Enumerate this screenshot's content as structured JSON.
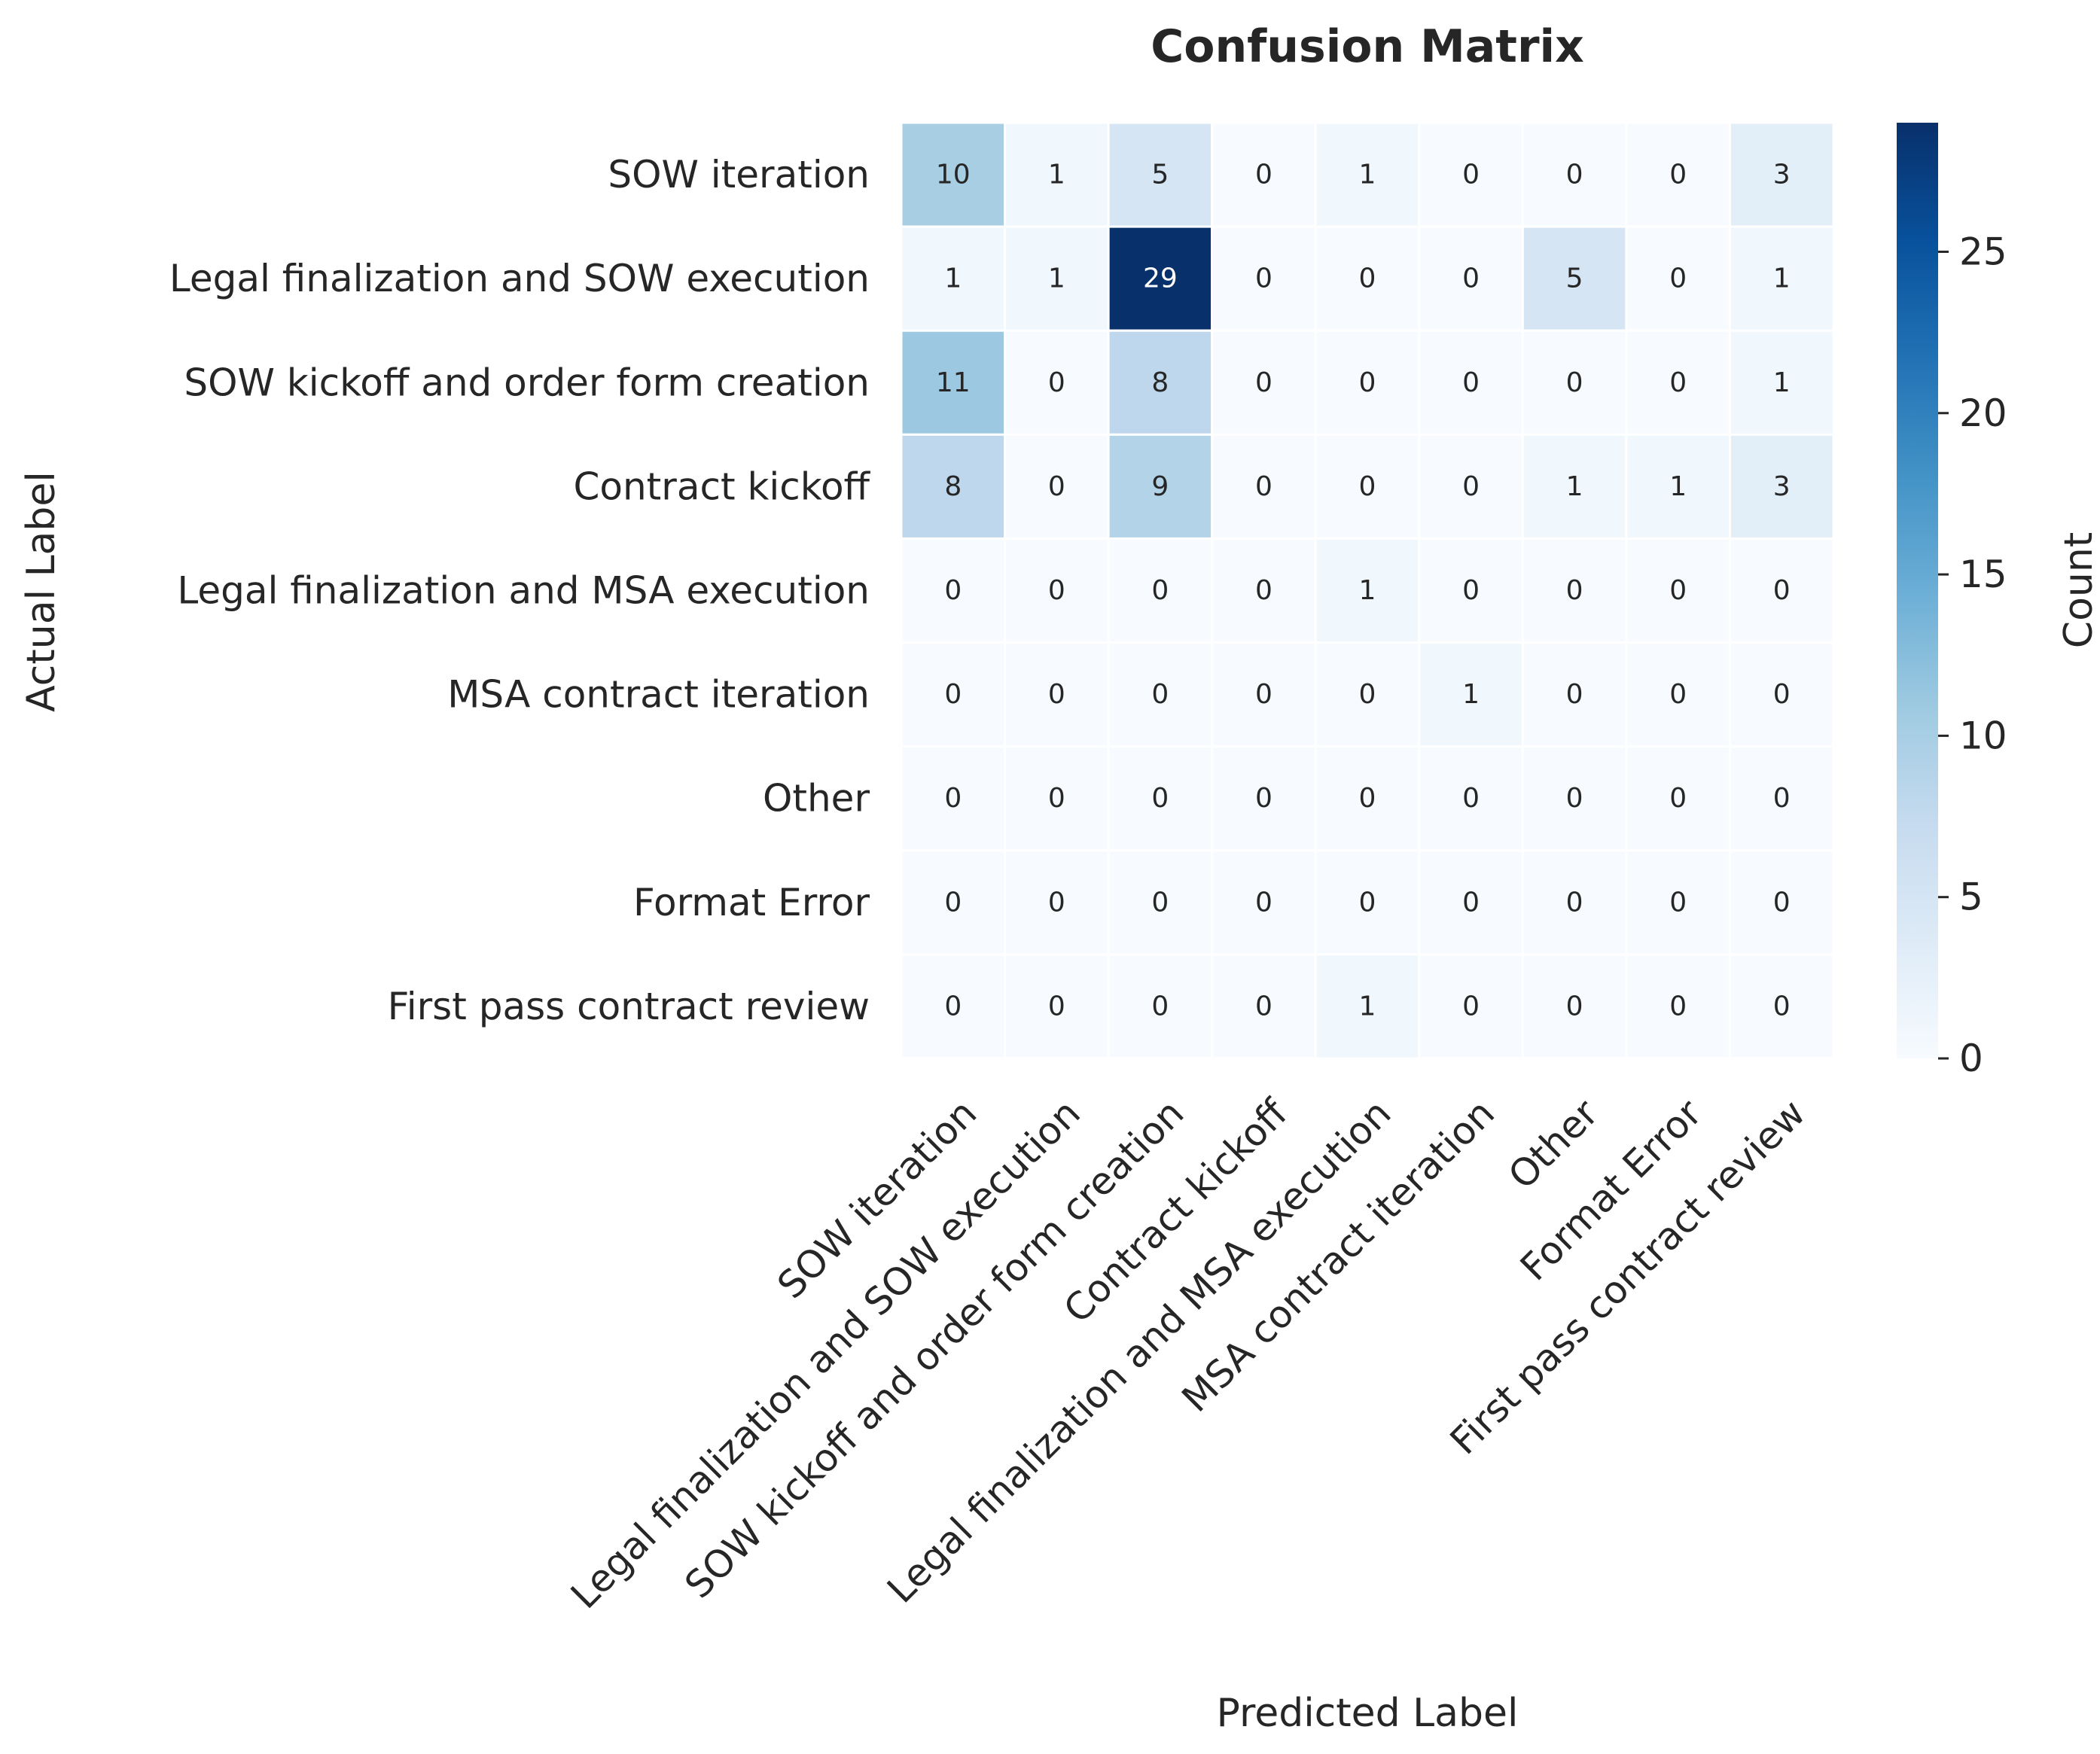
{
  "chart_data": {
    "type": "heatmap",
    "title": "Confusion Matrix",
    "xlabel": "Predicted Label",
    "ylabel": "Actual Label",
    "colorbar_label": "Count",
    "colormap": "Blues",
    "colors": {
      "low": "#f7fbff",
      "high": "#08306b",
      "grid_line": "#ffffff",
      "text_dark": "#262626",
      "text_light": "#ffffff"
    },
    "x_categories": [
      "SOW iteration",
      "Legal finalization and SOW execution",
      "SOW kickoff and order form creation",
      "Contract kickoff",
      "Legal finalization and MSA execution",
      "MSA contract iteration",
      "Other",
      "Format Error",
      "First pass contract review"
    ],
    "y_categories": [
      "SOW iteration",
      "Legal finalization and SOW execution",
      "SOW kickoff and order form creation",
      "Contract kickoff",
      "Legal finalization and MSA execution",
      "MSA contract iteration",
      "Other",
      "Format Error",
      "First pass contract review"
    ],
    "values": [
      [
        10,
        1,
        5,
        0,
        1,
        0,
        0,
        0,
        3
      ],
      [
        1,
        1,
        29,
        0,
        0,
        0,
        5,
        0,
        1
      ],
      [
        11,
        0,
        8,
        0,
        0,
        0,
        0,
        0,
        1
      ],
      [
        8,
        0,
        9,
        0,
        0,
        0,
        1,
        1,
        3
      ],
      [
        0,
        0,
        0,
        0,
        1,
        0,
        0,
        0,
        0
      ],
      [
        0,
        0,
        0,
        0,
        0,
        1,
        0,
        0,
        0
      ],
      [
        0,
        0,
        0,
        0,
        0,
        0,
        0,
        0,
        0
      ],
      [
        0,
        0,
        0,
        0,
        0,
        0,
        0,
        0,
        0
      ],
      [
        0,
        0,
        0,
        0,
        1,
        0,
        0,
        0,
        0
      ]
    ],
    "color_range": [
      0,
      29
    ],
    "colorbar_ticks": [
      0,
      5,
      10,
      15,
      20,
      25
    ]
  }
}
